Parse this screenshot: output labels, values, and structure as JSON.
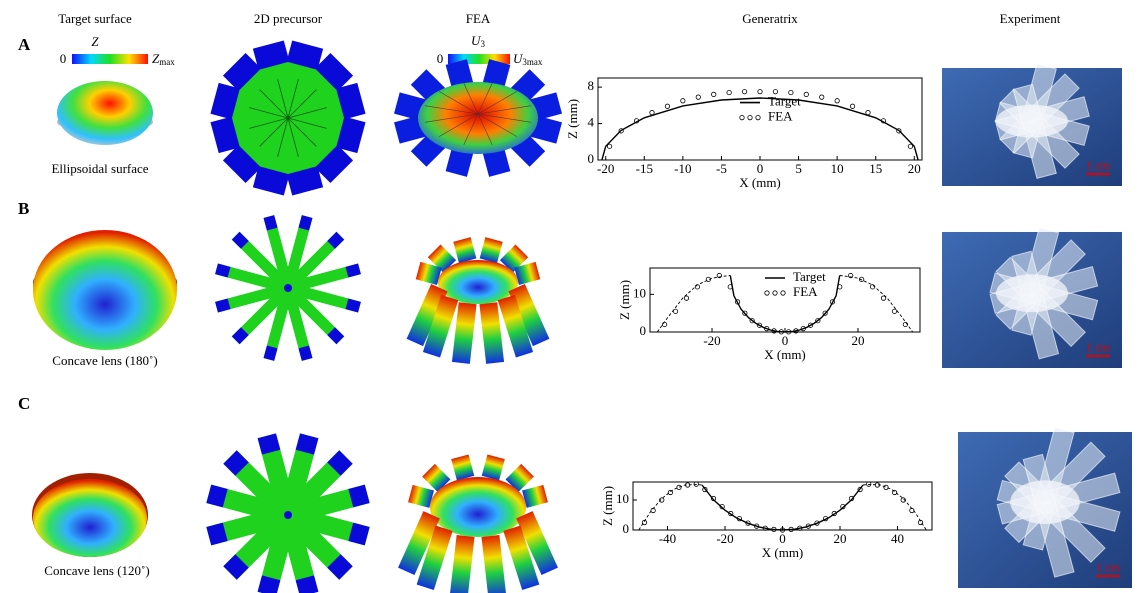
{
  "headers": [
    "Target surface",
    "2D precursor",
    "FEA",
    "Generatrix",
    "Experiment"
  ],
  "rows": [
    {
      "label": "A",
      "caption": "Ellipsoidal surface",
      "scale_bar": "1 cm"
    },
    {
      "label": "B",
      "caption": "Concave lens (180˚)",
      "scale_bar": "1 cm"
    },
    {
      "label": "C",
      "caption": "Concave lens (120˚)",
      "scale_bar": "1 cm"
    }
  ],
  "colorbars": {
    "target": {
      "symbol": "Z",
      "min": "0",
      "max_symbol": "Z",
      "max_subscript": "max"
    },
    "fea": {
      "symbol": "U",
      "symbol_subscript": "3",
      "min": "0",
      "max_symbol": "U",
      "max_subscript": "3max"
    }
  },
  "chart_data": [
    {
      "type": "line",
      "xlabel": "X (mm)",
      "ylabel": "Z (mm)",
      "xlim": [
        -21,
        21
      ],
      "ylim": [
        0,
        9
      ],
      "xticks": [
        -20,
        -15,
        -10,
        -5,
        0,
        5,
        10,
        15,
        20
      ],
      "yticks": [
        0,
        4,
        8
      ],
      "legend": "center",
      "series": [
        {
          "name": "Target",
          "color": "#000000",
          "style": "solid",
          "x": [
            -20.5,
            -20,
            -18,
            -15,
            -10,
            -5,
            0,
            5,
            10,
            15,
            18,
            20,
            20.5
          ],
          "values": [
            0,
            1.49,
            3.25,
            4.63,
            5.94,
            6.59,
            6.8,
            6.59,
            5.94,
            4.63,
            3.25,
            1.49,
            0
          ]
        },
        {
          "name": "FEA",
          "color": "#000000",
          "style": "markers",
          "x": [
            -19.5,
            -18,
            -16,
            -14,
            -12,
            -10,
            -8,
            -6,
            -4,
            -2,
            0,
            2,
            4,
            6,
            8,
            10,
            12,
            14,
            16,
            18,
            19.5
          ],
          "values": [
            1.5,
            3.2,
            4.3,
            5.2,
            5.9,
            6.5,
            6.9,
            7.2,
            7.4,
            7.5,
            7.5,
            7.5,
            7.4,
            7.2,
            6.9,
            6.5,
            5.9,
            5.2,
            4.3,
            3.2,
            1.5
          ]
        }
      ]
    },
    {
      "type": "line",
      "xlabel": "X (mm)",
      "ylabel": "Z (mm)",
      "xlim": [
        -37,
        37
      ],
      "ylim": [
        0,
        17
      ],
      "xticks": [
        -20,
        0,
        20
      ],
      "yticks": [
        0,
        10
      ],
      "legend": "upper center",
      "series": [
        {
          "name": "Target",
          "color": "#000000",
          "style": "solid",
          "x": [
            -15,
            -14,
            -12,
            -10,
            -8,
            -6,
            -4,
            -2,
            0,
            2,
            4,
            6,
            8,
            10,
            12,
            14,
            15
          ],
          "values": [
            15,
            9.61,
            6,
            3.82,
            2.31,
            1.25,
            0.54,
            0.13,
            0,
            0.13,
            0.54,
            1.25,
            2.31,
            3.82,
            6,
            9.61,
            15
          ]
        },
        {
          "name": "FEA",
          "color": "#000000",
          "style": "markers",
          "x": [
            -33,
            -30,
            -27,
            -24,
            -21,
            -18,
            -15,
            -13,
            -11,
            -9,
            -7,
            -5,
            -3,
            -1,
            1,
            3,
            5,
            7,
            9,
            11,
            13,
            15,
            18,
            21,
            24,
            27,
            30,
            33
          ],
          "values": [
            2,
            5.5,
            9,
            12,
            14,
            15,
            12,
            8,
            5,
            3,
            1.8,
            0.9,
            0.3,
            0.05,
            0.05,
            0.3,
            0.9,
            1.8,
            3,
            5,
            8,
            12,
            15,
            14,
            12,
            9,
            5.5,
            2
          ]
        },
        {
          "color": "#000000",
          "style": "dashed",
          "x": [
            -35,
            -32,
            -28,
            -24,
            -20,
            -17,
            -15,
            0,
            15,
            17,
            20,
            24,
            28,
            32,
            35
          ],
          "values": [
            0,
            4,
            9,
            12.5,
            14.3,
            14.8,
            15,
            null,
            15,
            14.8,
            14.3,
            12.5,
            9,
            4,
            0
          ]
        }
      ]
    },
    {
      "type": "line",
      "xlabel": "X (mm)",
      "ylabel": "Z (mm)",
      "xlim": [
        -52,
        52
      ],
      "ylim": [
        0,
        16
      ],
      "xticks": [
        -40,
        -20,
        0,
        20,
        40
      ],
      "yticks": [
        0,
        10
      ],
      "series": [
        {
          "color": "#000000",
          "style": "solid",
          "x": [
            -28,
            -24,
            -20,
            -16,
            -12,
            -8,
            -4,
            0,
            4,
            8,
            12,
            16,
            20,
            24,
            28
          ],
          "values": [
            15,
            10.08,
            6.6,
            4.05,
            2.22,
            0.97,
            0.24,
            0,
            0.24,
            0.97,
            2.22,
            4.05,
            6.6,
            10.08,
            15
          ]
        },
        {
          "color": "#000000",
          "style": "markers",
          "x": [
            -48,
            -45,
            -42,
            -39,
            -36,
            -33,
            -30,
            -27,
            -24,
            -21,
            -18,
            -15,
            -12,
            -9,
            -6,
            -3,
            0,
            3,
            6,
            9,
            12,
            15,
            18,
            21,
            24,
            27,
            30,
            33,
            36,
            39,
            42,
            45,
            48
          ],
          "values": [
            2.5,
            6.5,
            10,
            12.5,
            14.2,
            15,
            15.3,
            13.5,
            10.5,
            7.8,
            5.5,
            3.8,
            2.3,
            1.3,
            0.6,
            0.2,
            0,
            0.2,
            0.6,
            1.3,
            2.3,
            3.8,
            5.5,
            7.8,
            10.5,
            13.5,
            15.3,
            15,
            14.2,
            12.5,
            10,
            6.5,
            2.5
          ]
        },
        {
          "color": "#000000",
          "style": "dashed",
          "x": [
            -50,
            -46,
            -42,
            -38,
            -34,
            -30,
            -28,
            0,
            28,
            30,
            34,
            38,
            42,
            46,
            50
          ],
          "values": [
            0,
            6,
            10.5,
            13.5,
            15,
            15.2,
            15,
            null,
            15,
            15.2,
            15,
            13.5,
            10.5,
            6,
            0
          ]
        }
      ]
    }
  ]
}
